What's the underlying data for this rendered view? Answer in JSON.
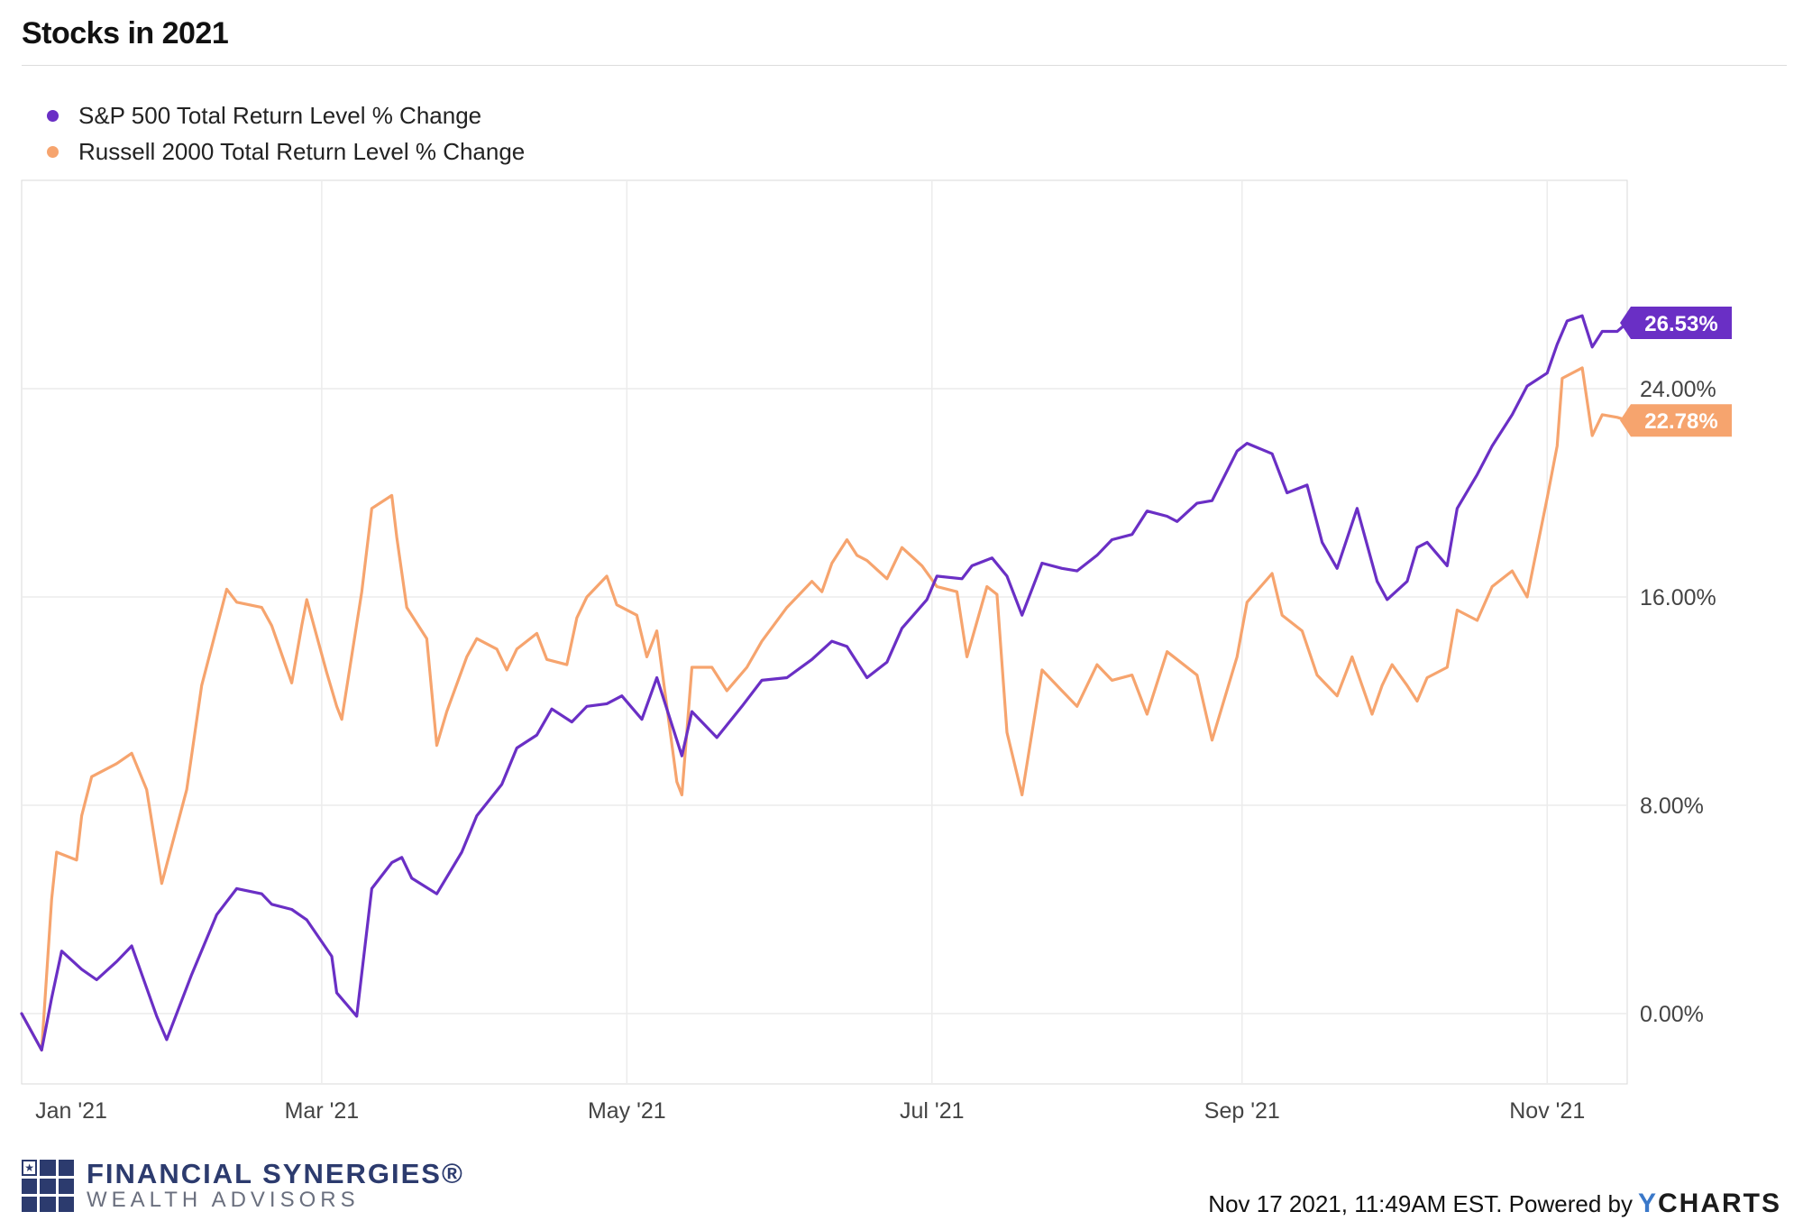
{
  "title": "Stocks in 2021",
  "footer": {
    "timestamp": "Nov 17 2021, 11:49AM EST. Powered by",
    "brand_y": "Y",
    "brand_rest": "CHARTS"
  },
  "logo": {
    "name": "FINANCIAL SYNERGIES®",
    "subtitle": "WEALTH ADVISORS"
  },
  "chart_data": {
    "type": "line",
    "title": "Stocks in 2021",
    "xlabel": "",
    "ylabel": "",
    "x_ticks": [
      "Jan '21",
      "Mar '21",
      "May '21",
      "Jul '21",
      "Sep '21",
      "Nov '21"
    ],
    "y_ticks": [
      "0.00%",
      "8.00%",
      "16.00%",
      "24.00%"
    ],
    "ylim": [
      -2.7,
      32
    ],
    "xlim": [
      "2020-12-31",
      "2021-11-17"
    ],
    "grid": true,
    "legend_position": "top-left",
    "series": [
      {
        "name": "S&P 500 Total Return Level % Change",
        "color": "#6a2fc5",
        "end_label": "26.53%",
        "points": [
          [
            "2020-12-31",
            0.0
          ],
          [
            "2021-01-04",
            -1.4
          ],
          [
            "2021-01-06",
            0.6
          ],
          [
            "2021-01-08",
            2.4
          ],
          [
            "2021-01-12",
            1.7
          ],
          [
            "2021-01-15",
            1.3
          ],
          [
            "2021-01-19",
            2.0
          ],
          [
            "2021-01-22",
            2.6
          ],
          [
            "2021-01-27",
            -0.1
          ],
          [
            "2021-01-29",
            -1.0
          ],
          [
            "2021-02-03",
            1.5
          ],
          [
            "2021-02-08",
            3.8
          ],
          [
            "2021-02-12",
            4.8
          ],
          [
            "2021-02-17",
            4.6
          ],
          [
            "2021-02-19",
            4.2
          ],
          [
            "2021-02-23",
            4.0
          ],
          [
            "2021-02-26",
            3.6
          ],
          [
            "2021-03-03",
            2.2
          ],
          [
            "2021-03-04",
            0.8
          ],
          [
            "2021-03-08",
            -0.1
          ],
          [
            "2021-03-11",
            4.8
          ],
          [
            "2021-03-15",
            5.8
          ],
          [
            "2021-03-17",
            6.0
          ],
          [
            "2021-03-19",
            5.2
          ],
          [
            "2021-03-24",
            4.6
          ],
          [
            "2021-03-29",
            6.2
          ],
          [
            "2021-04-01",
            7.6
          ],
          [
            "2021-04-06",
            8.8
          ],
          [
            "2021-04-09",
            10.2
          ],
          [
            "2021-04-13",
            10.7
          ],
          [
            "2021-04-16",
            11.7
          ],
          [
            "2021-04-20",
            11.2
          ],
          [
            "2021-04-23",
            11.8
          ],
          [
            "2021-04-27",
            11.9
          ],
          [
            "2021-04-30",
            12.2
          ],
          [
            "2021-05-04",
            11.3
          ],
          [
            "2021-05-07",
            12.9
          ],
          [
            "2021-05-12",
            9.9
          ],
          [
            "2021-05-14",
            11.6
          ],
          [
            "2021-05-19",
            10.6
          ],
          [
            "2021-05-24",
            11.8
          ],
          [
            "2021-05-28",
            12.8
          ],
          [
            "2021-06-02",
            12.9
          ],
          [
            "2021-06-07",
            13.6
          ],
          [
            "2021-06-11",
            14.3
          ],
          [
            "2021-06-14",
            14.1
          ],
          [
            "2021-06-18",
            12.9
          ],
          [
            "2021-06-22",
            13.5
          ],
          [
            "2021-06-25",
            14.8
          ],
          [
            "2021-06-30",
            15.9
          ],
          [
            "2021-07-02",
            16.8
          ],
          [
            "2021-07-07",
            16.7
          ],
          [
            "2021-07-09",
            17.2
          ],
          [
            "2021-07-13",
            17.5
          ],
          [
            "2021-07-16",
            16.8
          ],
          [
            "2021-07-19",
            15.3
          ],
          [
            "2021-07-23",
            17.3
          ],
          [
            "2021-07-27",
            17.1
          ],
          [
            "2021-07-30",
            17.0
          ],
          [
            "2021-08-03",
            17.6
          ],
          [
            "2021-08-06",
            18.2
          ],
          [
            "2021-08-10",
            18.4
          ],
          [
            "2021-08-13",
            19.3
          ],
          [
            "2021-08-17",
            19.1
          ],
          [
            "2021-08-19",
            18.9
          ],
          [
            "2021-08-23",
            19.6
          ],
          [
            "2021-08-26",
            19.7
          ],
          [
            "2021-08-31",
            21.6
          ],
          [
            "2021-09-02",
            21.9
          ],
          [
            "2021-09-07",
            21.5
          ],
          [
            "2021-09-10",
            20.0
          ],
          [
            "2021-09-14",
            20.3
          ],
          [
            "2021-09-17",
            18.1
          ],
          [
            "2021-09-20",
            17.1
          ],
          [
            "2021-09-24",
            19.4
          ],
          [
            "2021-09-28",
            16.6
          ],
          [
            "2021-09-30",
            15.9
          ],
          [
            "2021-10-04",
            16.6
          ],
          [
            "2021-10-06",
            17.9
          ],
          [
            "2021-10-08",
            18.1
          ],
          [
            "2021-10-12",
            17.2
          ],
          [
            "2021-10-14",
            19.4
          ],
          [
            "2021-10-18",
            20.7
          ],
          [
            "2021-10-21",
            21.8
          ],
          [
            "2021-10-25",
            23.0
          ],
          [
            "2021-10-28",
            24.1
          ],
          [
            "2021-11-01",
            24.6
          ],
          [
            "2021-11-03",
            25.7
          ],
          [
            "2021-11-05",
            26.6
          ],
          [
            "2021-11-08",
            26.8
          ],
          [
            "2021-11-10",
            25.6
          ],
          [
            "2021-11-12",
            26.2
          ],
          [
            "2021-11-15",
            26.2
          ],
          [
            "2021-11-17",
            26.53
          ]
        ]
      },
      {
        "name": "Russell 2000 Total Return Level % Change",
        "color": "#f6a46e",
        "end_label": "22.78%",
        "points": [
          [
            "2020-12-31",
            0.0
          ],
          [
            "2021-01-04",
            -1.4
          ],
          [
            "2021-01-06",
            4.4
          ],
          [
            "2021-01-07",
            6.2
          ],
          [
            "2021-01-11",
            5.9
          ],
          [
            "2021-01-12",
            7.6
          ],
          [
            "2021-01-14",
            9.1
          ],
          [
            "2021-01-19",
            9.6
          ],
          [
            "2021-01-22",
            10.0
          ],
          [
            "2021-01-25",
            8.6
          ],
          [
            "2021-01-28",
            5.0
          ],
          [
            "2021-02-02",
            8.6
          ],
          [
            "2021-02-05",
            12.6
          ],
          [
            "2021-02-10",
            16.3
          ],
          [
            "2021-02-12",
            15.8
          ],
          [
            "2021-02-17",
            15.6
          ],
          [
            "2021-02-19",
            14.9
          ],
          [
            "2021-02-23",
            12.7
          ],
          [
            "2021-02-25",
            14.9
          ],
          [
            "2021-02-26",
            15.9
          ],
          [
            "2021-03-02",
            13.1
          ],
          [
            "2021-03-04",
            11.8
          ],
          [
            "2021-03-05",
            11.3
          ],
          [
            "2021-03-09",
            16.2
          ],
          [
            "2021-03-11",
            19.4
          ],
          [
            "2021-03-15",
            19.9
          ],
          [
            "2021-03-16",
            18.3
          ],
          [
            "2021-03-18",
            15.6
          ],
          [
            "2021-03-22",
            14.4
          ],
          [
            "2021-03-24",
            10.3
          ],
          [
            "2021-03-26",
            11.6
          ],
          [
            "2021-03-30",
            13.7
          ],
          [
            "2021-04-01",
            14.4
          ],
          [
            "2021-04-05",
            14.0
          ],
          [
            "2021-04-07",
            13.2
          ],
          [
            "2021-04-09",
            14.0
          ],
          [
            "2021-04-13",
            14.6
          ],
          [
            "2021-04-15",
            13.6
          ],
          [
            "2021-04-19",
            13.4
          ],
          [
            "2021-04-21",
            15.2
          ],
          [
            "2021-04-23",
            16.0
          ],
          [
            "2021-04-27",
            16.8
          ],
          [
            "2021-04-29",
            15.7
          ],
          [
            "2021-05-03",
            15.3
          ],
          [
            "2021-05-05",
            13.7
          ],
          [
            "2021-05-07",
            14.7
          ],
          [
            "2021-05-11",
            8.9
          ],
          [
            "2021-05-12",
            8.4
          ],
          [
            "2021-05-14",
            13.3
          ],
          [
            "2021-05-18",
            13.3
          ],
          [
            "2021-05-21",
            12.4
          ],
          [
            "2021-05-25",
            13.3
          ],
          [
            "2021-05-28",
            14.3
          ],
          [
            "2021-06-02",
            15.6
          ],
          [
            "2021-06-07",
            16.6
          ],
          [
            "2021-06-09",
            16.2
          ],
          [
            "2021-06-11",
            17.3
          ],
          [
            "2021-06-14",
            18.2
          ],
          [
            "2021-06-16",
            17.6
          ],
          [
            "2021-06-18",
            17.4
          ],
          [
            "2021-06-22",
            16.7
          ],
          [
            "2021-06-25",
            17.9
          ],
          [
            "2021-06-29",
            17.2
          ],
          [
            "2021-07-02",
            16.4
          ],
          [
            "2021-07-06",
            16.2
          ],
          [
            "2021-07-08",
            13.7
          ],
          [
            "2021-07-12",
            16.4
          ],
          [
            "2021-07-14",
            16.1
          ],
          [
            "2021-07-16",
            10.8
          ],
          [
            "2021-07-19",
            8.4
          ],
          [
            "2021-07-23",
            13.2
          ],
          [
            "2021-07-27",
            12.4
          ],
          [
            "2021-07-30",
            11.8
          ],
          [
            "2021-08-03",
            13.4
          ],
          [
            "2021-08-06",
            12.8
          ],
          [
            "2021-08-10",
            13.0
          ],
          [
            "2021-08-13",
            11.5
          ],
          [
            "2021-08-17",
            13.9
          ],
          [
            "2021-08-19",
            13.6
          ],
          [
            "2021-08-23",
            13.0
          ],
          [
            "2021-08-26",
            10.5
          ],
          [
            "2021-08-31",
            13.7
          ],
          [
            "2021-09-02",
            15.8
          ],
          [
            "2021-09-07",
            16.9
          ],
          [
            "2021-09-09",
            15.3
          ],
          [
            "2021-09-13",
            14.7
          ],
          [
            "2021-09-16",
            13.0
          ],
          [
            "2021-09-20",
            12.2
          ],
          [
            "2021-09-23",
            13.7
          ],
          [
            "2021-09-27",
            11.5
          ],
          [
            "2021-09-29",
            12.6
          ],
          [
            "2021-10-01",
            13.4
          ],
          [
            "2021-10-04",
            12.6
          ],
          [
            "2021-10-06",
            12.0
          ],
          [
            "2021-10-08",
            12.9
          ],
          [
            "2021-10-12",
            13.3
          ],
          [
            "2021-10-14",
            15.5
          ],
          [
            "2021-10-18",
            15.1
          ],
          [
            "2021-10-21",
            16.4
          ],
          [
            "2021-10-25",
            17.0
          ],
          [
            "2021-10-28",
            16.0
          ],
          [
            "2021-11-01",
            19.8
          ],
          [
            "2021-11-03",
            21.8
          ],
          [
            "2021-11-04",
            24.4
          ],
          [
            "2021-11-08",
            24.8
          ],
          [
            "2021-11-10",
            22.2
          ],
          [
            "2021-11-12",
            23.0
          ],
          [
            "2021-11-15",
            22.9
          ],
          [
            "2021-11-17",
            22.78
          ]
        ]
      }
    ]
  }
}
